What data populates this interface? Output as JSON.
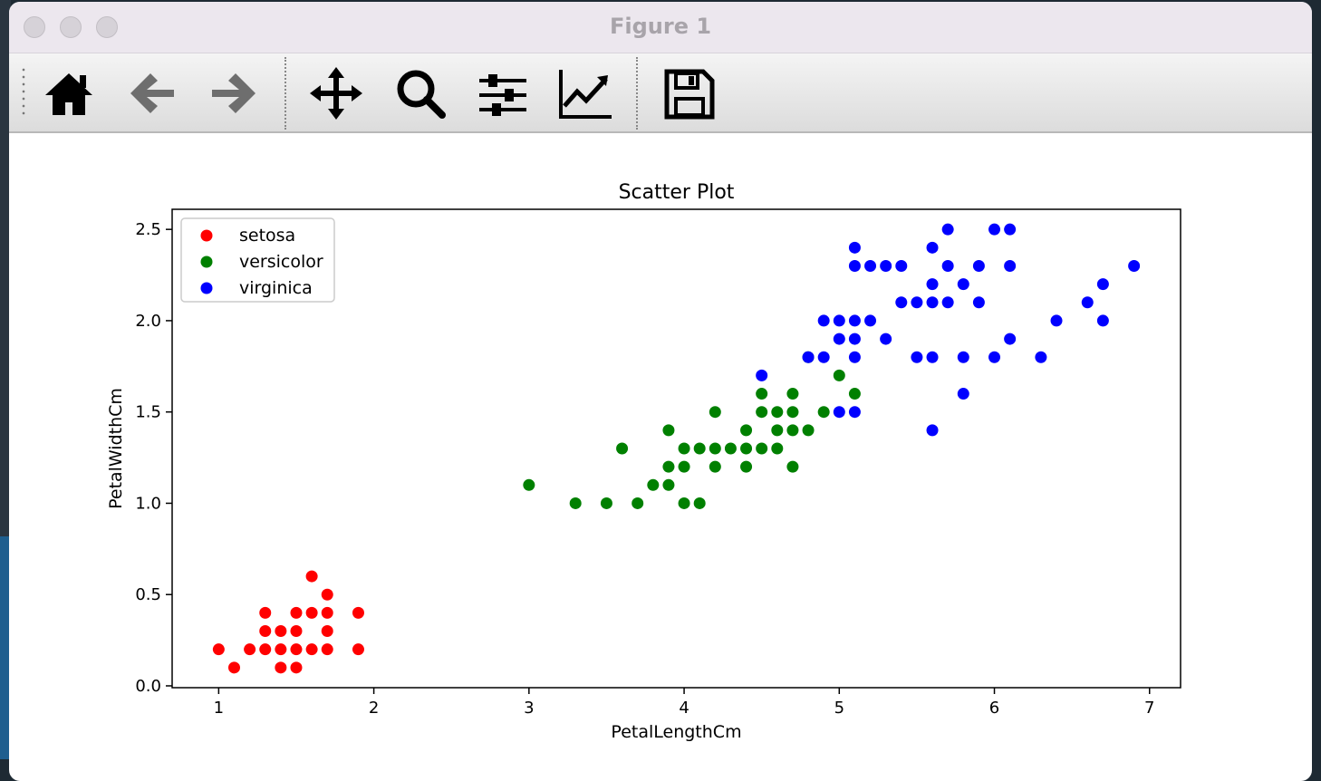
{
  "window": {
    "title": "Figure 1"
  },
  "toolbar": {
    "buttons": [
      {
        "name": "home-icon"
      },
      {
        "name": "back-arrow-icon"
      },
      {
        "name": "forward-arrow-icon"
      },
      {
        "name": "pan-move-icon"
      },
      {
        "name": "zoom-magnifier-icon"
      },
      {
        "name": "configure-subplots-icon"
      },
      {
        "name": "edit-axis-lines-icon"
      },
      {
        "name": "save-floppy-icon"
      }
    ]
  },
  "chart_data": {
    "type": "scatter",
    "title": "Scatter Plot",
    "xlabel": "PetalLengthCm",
    "ylabel": "PetalWidthCm",
    "xlim": [
      0.7,
      7.2
    ],
    "ylim": [
      -0.01,
      2.61
    ],
    "xticks": [
      "1",
      "2",
      "3",
      "4",
      "5",
      "6",
      "7"
    ],
    "yticks": [
      "0.0",
      "0.5",
      "1.0",
      "1.5",
      "2.0",
      "2.5"
    ],
    "legend_position": "top-left",
    "grid": false,
    "series": [
      {
        "name": "setosa",
        "color": "#ff0000",
        "points": [
          [
            1.0,
            0.2
          ],
          [
            1.1,
            0.1
          ],
          [
            1.2,
            0.2
          ],
          [
            1.3,
            0.2
          ],
          [
            1.3,
            0.3
          ],
          [
            1.3,
            0.4
          ],
          [
            1.4,
            0.1
          ],
          [
            1.4,
            0.2
          ],
          [
            1.4,
            0.3
          ],
          [
            1.5,
            0.1
          ],
          [
            1.5,
            0.2
          ],
          [
            1.5,
            0.3
          ],
          [
            1.5,
            0.4
          ],
          [
            1.6,
            0.2
          ],
          [
            1.6,
            0.4
          ],
          [
            1.6,
            0.6
          ],
          [
            1.7,
            0.2
          ],
          [
            1.7,
            0.3
          ],
          [
            1.7,
            0.4
          ],
          [
            1.7,
            0.5
          ],
          [
            1.9,
            0.2
          ],
          [
            1.9,
            0.4
          ]
        ]
      },
      {
        "name": "versicolor",
        "color": "#008000",
        "points": [
          [
            3.0,
            1.1
          ],
          [
            3.3,
            1.0
          ],
          [
            3.5,
            1.0
          ],
          [
            3.6,
            1.3
          ],
          [
            3.7,
            1.0
          ],
          [
            3.8,
            1.1
          ],
          [
            3.9,
            1.1
          ],
          [
            3.9,
            1.2
          ],
          [
            3.9,
            1.4
          ],
          [
            4.0,
            1.0
          ],
          [
            4.0,
            1.2
          ],
          [
            4.0,
            1.3
          ],
          [
            4.1,
            1.0
          ],
          [
            4.1,
            1.3
          ],
          [
            4.2,
            1.2
          ],
          [
            4.2,
            1.3
          ],
          [
            4.2,
            1.5
          ],
          [
            4.3,
            1.3
          ],
          [
            4.4,
            1.2
          ],
          [
            4.4,
            1.3
          ],
          [
            4.4,
            1.4
          ],
          [
            4.5,
            1.3
          ],
          [
            4.5,
            1.5
          ],
          [
            4.5,
            1.6
          ],
          [
            4.6,
            1.3
          ],
          [
            4.6,
            1.4
          ],
          [
            4.6,
            1.5
          ],
          [
            4.7,
            1.2
          ],
          [
            4.7,
            1.4
          ],
          [
            4.7,
            1.5
          ],
          [
            4.7,
            1.6
          ],
          [
            4.8,
            1.4
          ],
          [
            4.8,
            1.8
          ],
          [
            4.9,
            1.5
          ],
          [
            5.0,
            1.7
          ],
          [
            5.1,
            1.6
          ]
        ]
      },
      {
        "name": "virginica",
        "color": "#0000ff",
        "points": [
          [
            4.5,
            1.7
          ],
          [
            4.8,
            1.8
          ],
          [
            4.9,
            1.8
          ],
          [
            4.9,
            2.0
          ],
          [
            5.0,
            1.5
          ],
          [
            5.0,
            1.9
          ],
          [
            5.0,
            2.0
          ],
          [
            5.1,
            1.5
          ],
          [
            5.1,
            1.8
          ],
          [
            5.1,
            1.9
          ],
          [
            5.1,
            2.0
          ],
          [
            5.1,
            2.3
          ],
          [
            5.1,
            2.4
          ],
          [
            5.2,
            2.0
          ],
          [
            5.2,
            2.3
          ],
          [
            5.3,
            1.9
          ],
          [
            5.3,
            2.3
          ],
          [
            5.4,
            2.1
          ],
          [
            5.4,
            2.3
          ],
          [
            5.5,
            1.8
          ],
          [
            5.5,
            2.1
          ],
          [
            5.6,
            1.4
          ],
          [
            5.6,
            1.8
          ],
          [
            5.6,
            2.1
          ],
          [
            5.6,
            2.2
          ],
          [
            5.6,
            2.4
          ],
          [
            5.7,
            2.1
          ],
          [
            5.7,
            2.3
          ],
          [
            5.7,
            2.5
          ],
          [
            5.8,
            1.6
          ],
          [
            5.8,
            1.8
          ],
          [
            5.8,
            2.2
          ],
          [
            5.9,
            2.1
          ],
          [
            5.9,
            2.3
          ],
          [
            6.0,
            1.8
          ],
          [
            6.0,
            2.5
          ],
          [
            6.1,
            1.9
          ],
          [
            6.1,
            2.3
          ],
          [
            6.1,
            2.5
          ],
          [
            6.3,
            1.8
          ],
          [
            6.4,
            2.0
          ],
          [
            6.6,
            2.1
          ],
          [
            6.7,
            2.0
          ],
          [
            6.7,
            2.2
          ],
          [
            6.9,
            2.3
          ]
        ]
      }
    ]
  }
}
